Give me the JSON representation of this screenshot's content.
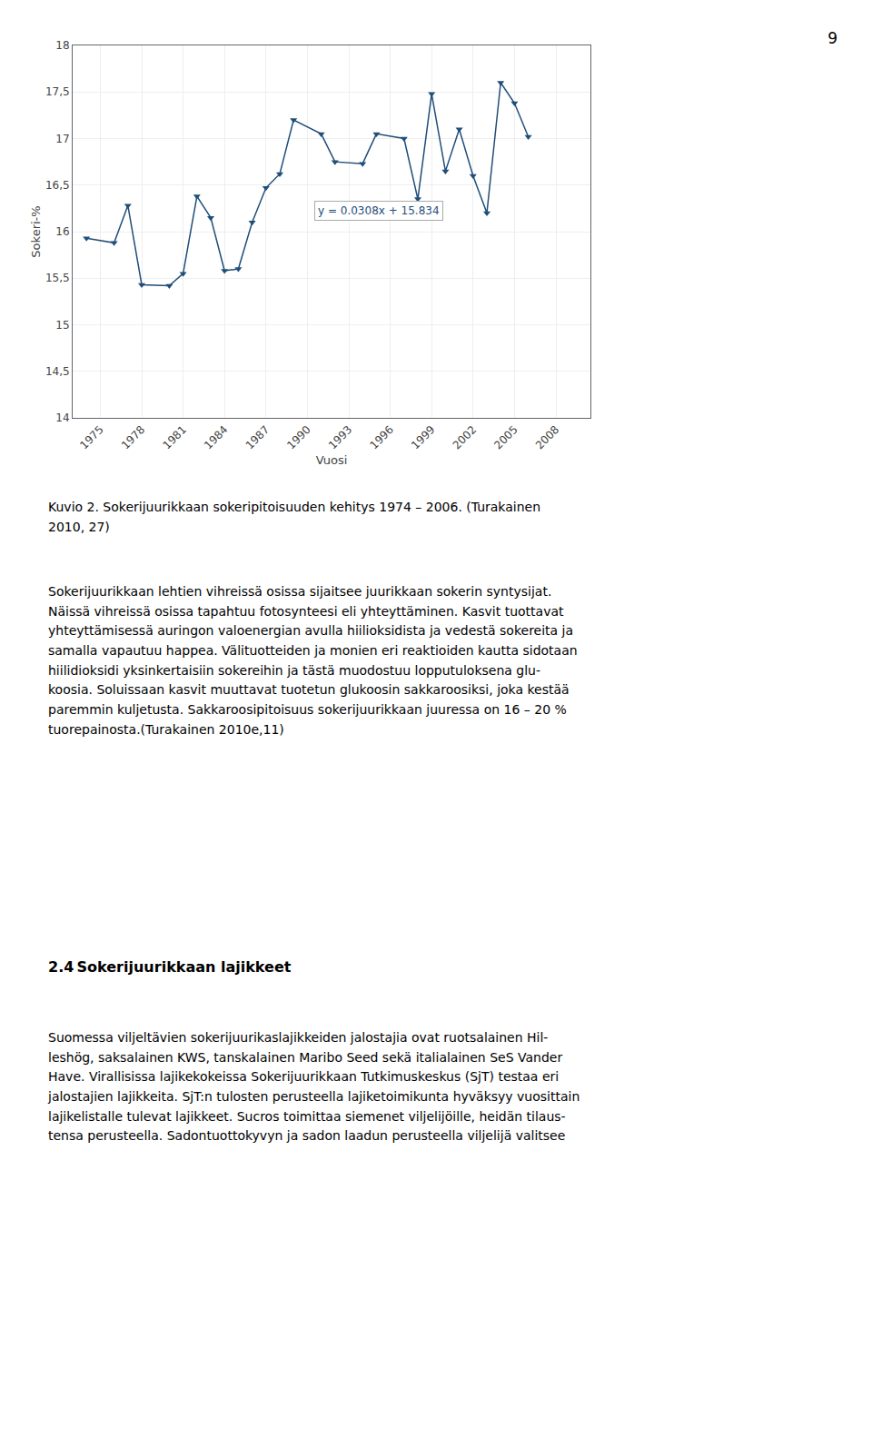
{
  "page_num": "9",
  "chart_data": {
    "type": "line",
    "xlabel": "Vuosi",
    "ylabel": "Sokeri-%",
    "x": [
      1974,
      1976,
      1977,
      1978,
      1980,
      1981,
      1982,
      1983,
      1984,
      1985,
      1986,
      1987,
      1988,
      1989,
      1991,
      1992,
      1994,
      1995,
      1997,
      1998,
      1999,
      2000,
      2001,
      2002,
      2003,
      2004,
      2005,
      2006
    ],
    "values": [
      15.93,
      15.88,
      16.28,
      15.43,
      15.42,
      15.55,
      16.38,
      16.15,
      15.58,
      15.6,
      16.1,
      16.47,
      16.62,
      17.2,
      17.05,
      16.75,
      16.73,
      17.05,
      17.0,
      16.35,
      17.48,
      16.65,
      17.1,
      16.6,
      16.2,
      17.6,
      17.38,
      17.02
    ],
    "color": "#1F4E79",
    "marker": "triangle-down",
    "xlim": [
      1973,
      2010.5
    ],
    "xticks": [
      1975,
      1978,
      1981,
      1984,
      1987,
      1990,
      1993,
      1996,
      1999,
      2002,
      2005,
      2008
    ],
    "ylim": [
      14,
      18
    ],
    "yticks": [
      14,
      {
        "value": 14.5,
        "label": "14,5"
      },
      15,
      {
        "value": 15.5,
        "label": "15,5"
      },
      16,
      {
        "value": 16.5,
        "label": "16,5"
      },
      17,
      {
        "value": 17.5,
        "label": "17,5"
      },
      18
    ],
    "grid": true,
    "annotations": [
      "y = 0.0308x + 15.834"
    ]
  },
  "caption": [
    "Kuvio 2. Sokerijuurikkaan sokeripitoisuuden kehitys 1974 – 2006. (Turakainen",
    "2010, 27)"
  ],
  "para1": [
    "Sokerijuurikkaan lehtien vihreissä osissa sijaitsee juurikkaan sokerin syntysijat.",
    "Näissä vihreissä osissa tapahtuu fotosynteesi eli yhteyttäminen. Kasvit tuottavat",
    "yhteyttämisessä auringon valoenergian avulla hiilioksidista ja vedestä sokereita ja",
    "samalla vapautuu happea. Välituotteiden ja monien eri reaktioiden kautta sidotaan",
    "hiilidioksidi yksinkertaisiin sokereihin ja tästä muodostuu lopputuloksena glu-",
    "koosia. Soluissaan kasvit muuttavat tuotetun glukoosin sakkaroosiksi, joka kestää",
    "paremmin kuljetusta. Sakkaroosipitoisuus sokerijuurikkaan juuressa on 16 – 20 %",
    "tuorepainosta.(Turakainen 2010e,11)"
  ],
  "heading2": "2.4 Sokerijuurikkaan lajikkeet",
  "para2": [
    "Suomessa viljeltävien sokerijuurikaslajikkeiden jalostajia ovat ruotsalainen Hil-",
    "leshög, saksalainen KWS, tanskalainen Maribo Seed sekä italialainen SeS Vander",
    "Have. Virallisissa lajikekokeissa Sokerijuurikkaan Tutkimuskeskus (SjT) testaa eri",
    "jalostajien lajikkeita. SjT:n tulosten perusteella lajiketoimikunta hyväksyy vuosittain",
    "lajikelistalle tulevat lajikkeet. Sucros toimittaa siemenet viljelijöille, heidän tilaus-",
    "tensa perusteella. Sadontuottokyvyn ja sadon laadun perusteella viljelijä valitsee"
  ]
}
